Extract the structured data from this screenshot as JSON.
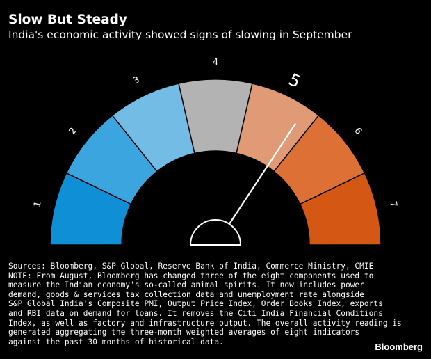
{
  "title": "Slow But Steady",
  "subtitle": "India's economic activity showed signs of slowing in September",
  "chart_data": {
    "type": "gauge",
    "title": "Slow But Steady",
    "subtitle": "India's economic activity showed signs of slowing in September",
    "segments": [
      {
        "label": "1",
        "color": "#0e8fd6"
      },
      {
        "label": "2",
        "color": "#3ba5df"
      },
      {
        "label": "3",
        "color": "#72bce5"
      },
      {
        "label": "4",
        "color": "#b3b3b3"
      },
      {
        "label": "5",
        "color": "#e09a75"
      },
      {
        "label": "6",
        "color": "#dc7035"
      },
      {
        "label": "7",
        "color": "#d45714"
      }
    ],
    "highlighted_segment": "5",
    "needle_value": 5.3,
    "range": [
      0.5,
      7.5
    ]
  },
  "source_lines": [
    "Sources: Bloomberg, S&P Global, Reserve Bank of India, Commerce Ministry, CMIE",
    "NOTE: From August, Bloomberg has changed three of the eight components used to",
    "measure the Indian economy's so-called animal spirits. It now includes power",
    "demand, goods & services tax collection data and unemployment rate alongside",
    "S&P Global India's Composite PMI, Output Price Index, Order Books Index, exports",
    "and RBI data on demand for loans. It removes the Citi India Financial Conditions",
    "Index, as well as factory and infrastructure output. The overall activity reading is",
    "generated aggregating the three-month weighted averages of eight indicators",
    "against the past 30 months of historical data."
  ],
  "logo": "Bloomberg"
}
